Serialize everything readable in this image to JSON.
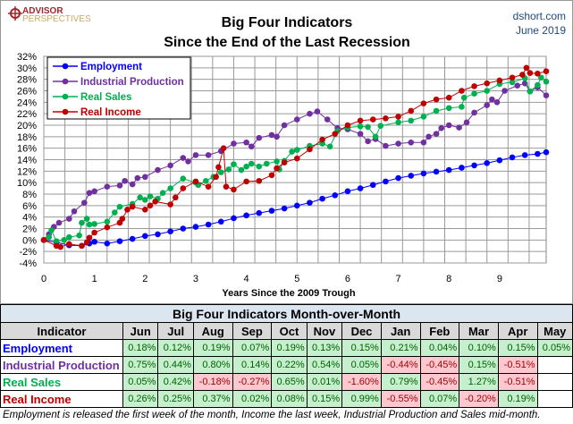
{
  "header": {
    "logo_line1": "ADVISOR",
    "logo_line2": "PERSPECTIVES",
    "site": "dshort.com",
    "date": "June 2019"
  },
  "chart_data": {
    "type": "line",
    "title": "Big Four Indicators",
    "subtitle": "Since the End of the Last Recession",
    "xlabel": "Years Since the 2009 Trough",
    "ylabel": "",
    "xlim": [
      0,
      9.92
    ],
    "ylim": [
      -4,
      32
    ],
    "x_ticks": [
      0,
      1,
      2,
      3,
      4,
      5,
      6,
      7,
      8,
      9
    ],
    "y_ticks": [
      -4,
      -2,
      0,
      2,
      4,
      6,
      8,
      10,
      12,
      14,
      16,
      18,
      20,
      22,
      24,
      26,
      28,
      30,
      32
    ],
    "y_tick_suffix": "%",
    "grid": true,
    "legend": "top-left",
    "series": [
      {
        "name": "Employment",
        "color": "#0000FF",
        "points": [
          [
            0,
            0
          ],
          [
            0.25,
            -0.4
          ],
          [
            0.5,
            -0.9
          ],
          [
            0.75,
            -1
          ],
          [
            0.9,
            -0.6
          ],
          [
            1,
            -0.3
          ],
          [
            1.25,
            -0.6
          ],
          [
            1.5,
            -0.2
          ],
          [
            1.75,
            0.2
          ],
          [
            2,
            0.7
          ],
          [
            2.25,
            1
          ],
          [
            2.5,
            1.5
          ],
          [
            2.75,
            2
          ],
          [
            3,
            2.3
          ],
          [
            3.25,
            2.7
          ],
          [
            3.5,
            3.2
          ],
          [
            3.75,
            3.8
          ],
          [
            4,
            4.3
          ],
          [
            4.25,
            4.7
          ],
          [
            4.5,
            5.1
          ],
          [
            4.75,
            5.5
          ],
          [
            5,
            6
          ],
          [
            5.25,
            6.5
          ],
          [
            5.5,
            7.2
          ],
          [
            5.75,
            7.8
          ],
          [
            6,
            8.5
          ],
          [
            6.25,
            9
          ],
          [
            6.5,
            9.6
          ],
          [
            6.75,
            10.2
          ],
          [
            7,
            10.8
          ],
          [
            7.25,
            11.2
          ],
          [
            7.5,
            11.6
          ],
          [
            7.75,
            11.9
          ],
          [
            8,
            12.2
          ],
          [
            8.25,
            12.6
          ],
          [
            8.5,
            13
          ],
          [
            8.75,
            13.4
          ],
          [
            9,
            13.9
          ],
          [
            9.25,
            14.4
          ],
          [
            9.5,
            14.8
          ],
          [
            9.75,
            15
          ],
          [
            9.92,
            15.3
          ]
        ]
      },
      {
        "name": "Industrial Production",
        "color": "#7030A0",
        "points": [
          [
            0,
            0
          ],
          [
            0.1,
            1
          ],
          [
            0.2,
            2.3
          ],
          [
            0.3,
            3
          ],
          [
            0.5,
            3.7
          ],
          [
            0.6,
            5
          ],
          [
            0.8,
            6.5
          ],
          [
            0.9,
            8.2
          ],
          [
            1,
            8.5
          ],
          [
            1.25,
            9.3
          ],
          [
            1.5,
            9.5
          ],
          [
            1.6,
            10.3
          ],
          [
            1.75,
            9.7
          ],
          [
            1.85,
            10.8
          ],
          [
            2,
            11
          ],
          [
            2.25,
            12.2
          ],
          [
            2.5,
            13
          ],
          [
            2.75,
            14.3
          ],
          [
            2.85,
            13.7
          ],
          [
            3,
            14.8
          ],
          [
            3.25,
            14.8
          ],
          [
            3.5,
            15.5
          ],
          [
            3.75,
            16.8
          ],
          [
            4,
            17
          ],
          [
            4.1,
            16.3
          ],
          [
            4.25,
            17.8
          ],
          [
            4.5,
            18.3
          ],
          [
            4.6,
            18
          ],
          [
            4.75,
            20
          ],
          [
            5,
            21
          ],
          [
            5.25,
            22
          ],
          [
            5.4,
            22.4
          ],
          [
            5.6,
            21
          ],
          [
            5.8,
            19.5
          ],
          [
            6,
            19.3
          ],
          [
            6.25,
            18.5
          ],
          [
            6.4,
            17.2
          ],
          [
            6.55,
            17.6
          ],
          [
            6.75,
            16.4
          ],
          [
            7,
            16.8
          ],
          [
            7.25,
            17
          ],
          [
            7.5,
            17
          ],
          [
            7.6,
            18
          ],
          [
            7.75,
            18.5
          ],
          [
            7.85,
            19.5
          ],
          [
            8,
            20
          ],
          [
            8.2,
            19.6
          ],
          [
            8.35,
            20.5
          ],
          [
            8.5,
            22.2
          ],
          [
            8.75,
            23.5
          ],
          [
            8.85,
            24.5
          ],
          [
            8.95,
            24
          ],
          [
            9.1,
            26
          ],
          [
            9.35,
            26.9
          ],
          [
            9.5,
            27.3
          ],
          [
            9.6,
            25.9
          ],
          [
            9.75,
            26.6
          ],
          [
            9.92,
            25.2
          ]
        ]
      },
      {
        "name": "Real Sales",
        "color": "#00B050",
        "points": [
          [
            0,
            0
          ],
          [
            0.1,
            0.5
          ],
          [
            0.15,
            1.7
          ],
          [
            0.25,
            -0.2
          ],
          [
            0.4,
            0
          ],
          [
            0.5,
            0.5
          ],
          [
            0.7,
            0.8
          ],
          [
            0.75,
            3
          ],
          [
            0.85,
            3.7
          ],
          [
            0.9,
            2.7
          ],
          [
            1,
            2.8
          ],
          [
            1.25,
            3.2
          ],
          [
            1.4,
            4.8
          ],
          [
            1.5,
            5.8
          ],
          [
            1.75,
            6.3
          ],
          [
            1.9,
            7.4
          ],
          [
            2,
            7
          ],
          [
            2.1,
            7.6
          ],
          [
            2.25,
            7.2
          ],
          [
            2.35,
            8.2
          ],
          [
            2.5,
            9
          ],
          [
            2.75,
            10.7
          ],
          [
            3,
            10
          ],
          [
            3.05,
            9.6
          ],
          [
            3.2,
            10.3
          ],
          [
            3.35,
            11
          ],
          [
            3.5,
            11.8
          ],
          [
            3.65,
            12.3
          ],
          [
            3.75,
            13.2
          ],
          [
            3.9,
            12.2
          ],
          [
            4,
            12.8
          ],
          [
            4.1,
            13.3
          ],
          [
            4.25,
            12.8
          ],
          [
            4.4,
            13.3
          ],
          [
            4.6,
            13.7
          ],
          [
            4.65,
            12.3
          ],
          [
            4.75,
            13.8
          ],
          [
            4.9,
            15.4
          ],
          [
            5,
            15.7
          ],
          [
            5.25,
            16.4
          ],
          [
            5.5,
            16.8
          ],
          [
            5.65,
            16.3
          ],
          [
            5.8,
            19
          ],
          [
            6,
            19.6
          ],
          [
            6.25,
            19.8
          ],
          [
            6.4,
            19.7
          ],
          [
            6.55,
            18
          ],
          [
            6.65,
            19.9
          ],
          [
            7,
            20.5
          ],
          [
            7.25,
            20.8
          ],
          [
            7.5,
            21.5
          ],
          [
            7.75,
            22.5
          ],
          [
            8,
            23
          ],
          [
            8.25,
            23.2
          ],
          [
            8.3,
            24.8
          ],
          [
            8.5,
            25.5
          ],
          [
            8.75,
            26
          ],
          [
            9,
            27.2
          ],
          [
            9.25,
            27.5
          ],
          [
            9.5,
            28.2
          ],
          [
            9.6,
            25.9
          ],
          [
            9.75,
            27
          ],
          [
            9.82,
            28.3
          ],
          [
            9.92,
            27.6
          ]
        ]
      },
      {
        "name": "Real Income",
        "color": "#C00000",
        "points": [
          [
            0,
            0
          ],
          [
            0.25,
            -1
          ],
          [
            0.33,
            -1.2
          ],
          [
            0.5,
            -0.7
          ],
          [
            0.75,
            -1
          ],
          [
            0.85,
            -0.4
          ],
          [
            0.9,
            0.4
          ],
          [
            1,
            1.3
          ],
          [
            1.25,
            2.2
          ],
          [
            1.5,
            3
          ],
          [
            1.55,
            3.7
          ],
          [
            1.65,
            5.3
          ],
          [
            1.75,
            5.8
          ],
          [
            2,
            5.3
          ],
          [
            2.1,
            6
          ],
          [
            2.2,
            6.7
          ],
          [
            2.5,
            6.2
          ],
          [
            2.6,
            7.4
          ],
          [
            2.75,
            9
          ],
          [
            3,
            10.2
          ],
          [
            3.25,
            9.3
          ],
          [
            3.4,
            11
          ],
          [
            3.45,
            12.7
          ],
          [
            3.55,
            16
          ],
          [
            3.6,
            9.3
          ],
          [
            3.75,
            8.8
          ],
          [
            4,
            10.2
          ],
          [
            4.25,
            10.3
          ],
          [
            4.5,
            11.3
          ],
          [
            4.6,
            12.5
          ],
          [
            4.75,
            13.5
          ],
          [
            5,
            14.2
          ],
          [
            5.25,
            15.8
          ],
          [
            5.5,
            17.5
          ],
          [
            5.75,
            18.5
          ],
          [
            6,
            20
          ],
          [
            6.25,
            20.8
          ],
          [
            6.5,
            21
          ],
          [
            6.75,
            21.2
          ],
          [
            7,
            21.5
          ],
          [
            7.25,
            22.5
          ],
          [
            7.5,
            23.8
          ],
          [
            7.75,
            24.5
          ],
          [
            8,
            24.8
          ],
          [
            8.25,
            26
          ],
          [
            8.5,
            26.8
          ],
          [
            8.75,
            27.3
          ],
          [
            9,
            27.8
          ],
          [
            9.25,
            28.3
          ],
          [
            9.45,
            28.8
          ],
          [
            9.53,
            30
          ],
          [
            9.6,
            29.1
          ],
          [
            9.75,
            29
          ],
          [
            9.92,
            29.4
          ]
        ]
      }
    ]
  },
  "table": {
    "title": "Big Four Indicators Month-over-Month",
    "header": "Indicator",
    "months": [
      "Jun",
      "Jul",
      "Aug",
      "Sep",
      "Oct",
      "Nov",
      "Dec",
      "Jan",
      "Feb",
      "Mar",
      "Apr",
      "May"
    ],
    "rows": [
      {
        "name": "Employment",
        "color": "#0000FF",
        "values": [
          "0.18%",
          "0.12%",
          "0.19%",
          "0.07%",
          "0.19%",
          "0.13%",
          "0.15%",
          "0.21%",
          "0.04%",
          "0.10%",
          "0.15%",
          "0.05%"
        ]
      },
      {
        "name": "Industrial Production",
        "color": "#7030A0",
        "values": [
          "0.75%",
          "0.44%",
          "0.80%",
          "0.14%",
          "0.22%",
          "0.54%",
          "0.05%",
          "-0.44%",
          "-0.45%",
          "0.15%",
          "-0.51%",
          ""
        ]
      },
      {
        "name": "Real Sales",
        "color": "#00B050",
        "values": [
          "0.05%",
          "0.42%",
          "-0.18%",
          "-0.27%",
          "0.65%",
          "0.01%",
          "-1.60%",
          "0.79%",
          "-0.45%",
          "1.27%",
          "-0.51%",
          ""
        ]
      },
      {
        "name": "Real Income",
        "color": "#C00000",
        "values": [
          "0.26%",
          "0.25%",
          "0.37%",
          "0.02%",
          "0.08%",
          "0.15%",
          "0.99%",
          "-0.55%",
          "0.07%",
          "-0.20%",
          "0.19%",
          ""
        ]
      }
    ]
  },
  "footnote": "Employment is released the first week of the month, Income the last week, Industrial Production and Sales mid-month."
}
